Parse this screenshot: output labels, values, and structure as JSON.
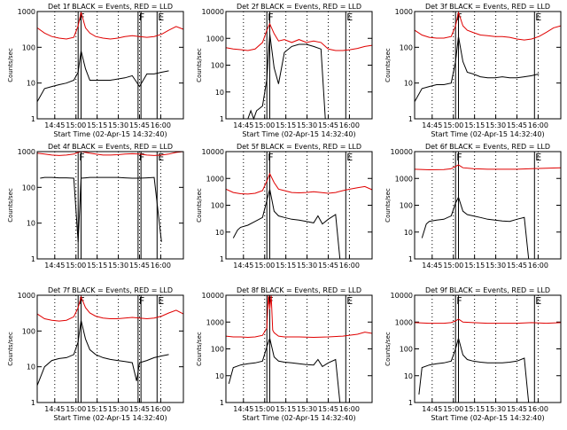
{
  "colors": {
    "events": "#000000",
    "lld": "#e00000",
    "background": "#ffffff"
  },
  "chart_data": [
    {
      "type": "line",
      "title": "Det 1f  BLACK = Events, RED = LLD",
      "xlabel": "Start Time (02-Apr-15 14:32:40)",
      "ylabel": "Counts/sec",
      "xticks": [
        "14:45",
        "15:00",
        "15:15",
        "15:30",
        "15:45",
        "16:00"
      ],
      "yticks": [
        "1",
        "10",
        "100",
        "1000"
      ],
      "ylim": [
        1,
        1000
      ],
      "log_y": true,
      "flags": [
        "F",
        "F",
        "E"
      ],
      "series": [
        {
          "color": "#000000",
          "x": [
            0.0,
            0.05,
            0.1,
            0.15,
            0.2,
            0.25,
            0.28,
            0.3,
            0.33,
            0.36,
            0.4,
            0.45,
            0.5,
            0.55,
            0.6,
            0.65,
            0.7,
            0.75,
            0.8,
            0.85,
            0.9
          ],
          "y": [
            3,
            7,
            8,
            9,
            10,
            12,
            20,
            80,
            25,
            12,
            12,
            12,
            12,
            13,
            14,
            16,
            8,
            18,
            18,
            20,
            22
          ]
        },
        {
          "color": "#e00000",
          "x": [
            0.0,
            0.05,
            0.1,
            0.15,
            0.2,
            0.25,
            0.28,
            0.3,
            0.33,
            0.36,
            0.4,
            0.45,
            0.5,
            0.55,
            0.6,
            0.65,
            0.7,
            0.75,
            0.8,
            0.85,
            0.9,
            0.95,
            1.0
          ],
          "y": [
            350,
            250,
            200,
            180,
            170,
            190,
            400,
            950,
            350,
            250,
            200,
            180,
            170,
            180,
            200,
            210,
            200,
            190,
            200,
            230,
            300,
            380,
            320
          ]
        }
      ]
    },
    {
      "type": "line",
      "title": "Det 2f  BLACK = Events, RED = LLD",
      "xlabel": "Start Time (02-Apr-15 14:32:40)",
      "ylabel": "Counts/sec",
      "xticks": [
        "14:45",
        "15:00",
        "15:15",
        "15:30",
        "15:45",
        "16:00"
      ],
      "yticks": [
        "1",
        "10",
        "100",
        "1000",
        "10000"
      ],
      "ylim": [
        1,
        10000
      ],
      "log_y": true,
      "flags": [
        "F",
        "E"
      ],
      "series": [
        {
          "color": "#000000",
          "x": [
            0.15,
            0.17,
            0.19,
            0.21,
            0.25,
            0.28,
            0.3,
            0.33,
            0.36,
            0.4,
            0.45,
            0.5,
            0.55,
            0.6,
            0.65,
            0.68
          ],
          "y": [
            1,
            2,
            1,
            2,
            3,
            30,
            1500,
            80,
            20,
            300,
            500,
            600,
            600,
            500,
            400,
            1
          ]
        },
        {
          "color": "#e00000",
          "x": [
            0.0,
            0.05,
            0.1,
            0.15,
            0.2,
            0.25,
            0.28,
            0.3,
            0.33,
            0.36,
            0.4,
            0.45,
            0.5,
            0.55,
            0.6,
            0.65,
            0.7,
            0.75,
            0.8,
            0.85,
            0.9,
            0.95,
            1.0
          ],
          "y": [
            450,
            400,
            380,
            350,
            400,
            700,
            2000,
            3500,
            1500,
            800,
            900,
            700,
            900,
            700,
            800,
            700,
            400,
            350,
            350,
            380,
            420,
            500,
            550
          ]
        }
      ]
    },
    {
      "type": "line",
      "title": "Det 3f  BLACK = Events, RED = LLD",
      "xlabel": "Start Time (02-Apr-15 14:32:40)",
      "ylabel": "Counts/sec",
      "xticks": [
        "14:45",
        "15:00",
        "15:15",
        "15:30",
        "15:45",
        "16:00"
      ],
      "yticks": [
        "1",
        "10",
        "100",
        "1000"
      ],
      "ylim": [
        1,
        1000
      ],
      "log_y": true,
      "flags": [
        "F",
        "E"
      ],
      "series": [
        {
          "color": "#000000",
          "x": [
            0.0,
            0.05,
            0.1,
            0.15,
            0.2,
            0.25,
            0.28,
            0.3,
            0.33,
            0.36,
            0.4,
            0.45,
            0.5,
            0.55,
            0.6,
            0.65,
            0.7,
            0.75,
            0.8,
            0.85
          ],
          "y": [
            3,
            7,
            8,
            9,
            9,
            10,
            40,
            200,
            40,
            20,
            18,
            15,
            14,
            14,
            15,
            14,
            14,
            15,
            16,
            18
          ]
        },
        {
          "color": "#e00000",
          "x": [
            0.0,
            0.05,
            0.1,
            0.15,
            0.2,
            0.25,
            0.28,
            0.3,
            0.33,
            0.36,
            0.4,
            0.45,
            0.5,
            0.55,
            0.6,
            0.65,
            0.7,
            0.75,
            0.8,
            0.85,
            0.9,
            0.95,
            1.0
          ],
          "y": [
            300,
            220,
            190,
            180,
            180,
            200,
            400,
            950,
            400,
            300,
            260,
            220,
            210,
            200,
            200,
            190,
            170,
            160,
            170,
            200,
            260,
            350,
            400
          ]
        }
      ]
    },
    {
      "type": "line",
      "title": "Det 4f  BLACK = Events, RED = LLD",
      "xlabel": "",
      "ylabel": "Counts/sec",
      "xticks": [
        "14:45",
        "15:00",
        "15:15",
        "15:30",
        "15:45",
        "16:00"
      ],
      "yticks": [
        "1",
        "10",
        "100",
        "1000"
      ],
      "ylim": [
        1,
        1000
      ],
      "log_y": true,
      "flags": [
        "F",
        "F",
        "E"
      ],
      "series": [
        {
          "color": "#000000",
          "x": [
            0.02,
            0.05,
            0.1,
            0.15,
            0.2,
            0.25,
            0.28,
            0.3,
            0.33,
            0.36,
            0.4,
            0.45,
            0.5,
            0.55,
            0.6,
            0.65,
            0.7,
            0.75,
            0.8,
            0.85
          ],
          "y": [
            180,
            190,
            190,
            185,
            185,
            180,
            3,
            180,
            185,
            190,
            190,
            190,
            190,
            190,
            185,
            180,
            180,
            185,
            190,
            3
          ]
        },
        {
          "color": "#e00000",
          "x": [
            0.0,
            0.05,
            0.1,
            0.15,
            0.2,
            0.25,
            0.28,
            0.3,
            0.33,
            0.36,
            0.4,
            0.45,
            0.5,
            0.55,
            0.6,
            0.65,
            0.7,
            0.75,
            0.8,
            0.85,
            0.9,
            0.95,
            1.0
          ],
          "y": [
            900,
            850,
            800,
            780,
            800,
            850,
            950,
            1000,
            950,
            900,
            850,
            800,
            800,
            820,
            850,
            870,
            850,
            800,
            780,
            800,
            850,
            950,
            1000
          ]
        }
      ]
    },
    {
      "type": "line",
      "title": "Det 5f  BLACK = Events, RED = LLD",
      "xlabel": "",
      "ylabel": "Counts/sec",
      "xticks": [
        "14:45",
        "15:00",
        "15:15",
        "15:30",
        "15:45",
        "16:00"
      ],
      "yticks": [
        "1",
        "10",
        "100",
        "1000",
        "10000"
      ],
      "ylim": [
        1,
        10000
      ],
      "log_y": true,
      "flags": [
        "F",
        "E"
      ],
      "series": [
        {
          "color": "#000000",
          "x": [
            0.05,
            0.08,
            0.1,
            0.15,
            0.2,
            0.25,
            0.28,
            0.3,
            0.33,
            0.36,
            0.4,
            0.45,
            0.5,
            0.55,
            0.6,
            0.63,
            0.66,
            0.7,
            0.75,
            0.78
          ],
          "y": [
            6,
            12,
            15,
            18,
            25,
            35,
            150,
            400,
            60,
            40,
            35,
            30,
            28,
            25,
            22,
            40,
            20,
            30,
            45,
            1
          ]
        },
        {
          "color": "#e00000",
          "x": [
            0.0,
            0.05,
            0.1,
            0.15,
            0.2,
            0.25,
            0.28,
            0.3,
            0.33,
            0.36,
            0.4,
            0.45,
            0.5,
            0.55,
            0.6,
            0.65,
            0.7,
            0.75,
            0.8,
            0.85,
            0.9,
            0.95,
            1.0
          ],
          "y": [
            400,
            300,
            270,
            260,
            280,
            350,
            800,
            1500,
            700,
            400,
            350,
            300,
            290,
            300,
            320,
            300,
            280,
            300,
            350,
            400,
            450,
            500,
            380
          ]
        }
      ]
    },
    {
      "type": "line",
      "title": "Det 6f  BLACK = Events, RED = LLD",
      "xlabel": "",
      "ylabel": "Counts/sec",
      "xticks": [
        "14:45",
        "15:00",
        "15:15",
        "15:30",
        "15:45",
        "16:00"
      ],
      "yticks": [
        "1",
        "10",
        "100",
        "1000",
        "10000"
      ],
      "ylim": [
        1,
        10000
      ],
      "log_y": true,
      "flags": [
        "F",
        "E"
      ],
      "series": [
        {
          "color": "#000000",
          "x": [
            0.05,
            0.08,
            0.1,
            0.15,
            0.2,
            0.25,
            0.28,
            0.3,
            0.33,
            0.36,
            0.4,
            0.45,
            0.5,
            0.55,
            0.6,
            0.65,
            0.7,
            0.75,
            0.78
          ],
          "y": [
            6,
            20,
            25,
            28,
            30,
            40,
            120,
            200,
            60,
            45,
            40,
            35,
            30,
            28,
            26,
            25,
            30,
            35,
            1
          ]
        },
        {
          "color": "#e00000",
          "x": [
            0.0,
            0.1,
            0.2,
            0.25,
            0.28,
            0.3,
            0.33,
            0.4,
            0.5,
            0.6,
            0.7,
            0.8,
            0.9,
            1.0
          ],
          "y": [
            2200,
            2100,
            2150,
            2300,
            2800,
            3200,
            2500,
            2300,
            2200,
            2200,
            2200,
            2300,
            2400,
            2500
          ]
        }
      ]
    },
    {
      "type": "line",
      "title": "Det 7f  BLACK = Events, RED = LLD",
      "xlabel": "Start Time (02-Apr-15 14:32:40)",
      "ylabel": "Counts/sec",
      "xticks": [
        "14:45",
        "15:00",
        "15:15",
        "15:30",
        "15:45",
        "16:00"
      ],
      "yticks": [
        "1",
        "10",
        "100",
        "1000"
      ],
      "ylim": [
        1,
        1000
      ],
      "log_y": true,
      "flags": [
        "F",
        "F",
        "E"
      ],
      "series": [
        {
          "color": "#000000",
          "x": [
            0.0,
            0.05,
            0.1,
            0.15,
            0.2,
            0.25,
            0.28,
            0.3,
            0.33,
            0.36,
            0.4,
            0.45,
            0.5,
            0.55,
            0.6,
            0.65,
            0.68,
            0.7,
            0.75,
            0.8,
            0.85,
            0.9
          ],
          "y": [
            3,
            10,
            15,
            17,
            18,
            22,
            50,
            200,
            60,
            30,
            22,
            18,
            16,
            15,
            14,
            13,
            4,
            13,
            15,
            18,
            20,
            22
          ]
        },
        {
          "color": "#e00000",
          "x": [
            0.0,
            0.05,
            0.1,
            0.15,
            0.2,
            0.25,
            0.28,
            0.3,
            0.33,
            0.36,
            0.4,
            0.45,
            0.5,
            0.55,
            0.6,
            0.65,
            0.7,
            0.75,
            0.8,
            0.85,
            0.9,
            0.95,
            1.0
          ],
          "y": [
            300,
            220,
            200,
            190,
            200,
            250,
            450,
            900,
            450,
            320,
            260,
            230,
            220,
            220,
            230,
            240,
            230,
            220,
            230,
            260,
            320,
            380,
            300
          ]
        }
      ]
    },
    {
      "type": "line",
      "title": "Det 8f  BLACK = Events, RED = LLD",
      "xlabel": "Start Time (02-Apr-15 14:32:40)",
      "ylabel": "Counts/sec",
      "xticks": [
        "14:45",
        "15:00",
        "15:15",
        "15:30",
        "15:45",
        "16:00"
      ],
      "yticks": [
        "1",
        "10",
        "100",
        "1000",
        "10000"
      ],
      "ylim": [
        1,
        10000
      ],
      "log_y": true,
      "flags": [
        "F",
        "E"
      ],
      "series": [
        {
          "color": "#000000",
          "x": [
            0.02,
            0.05,
            0.1,
            0.15,
            0.2,
            0.25,
            0.28,
            0.3,
            0.33,
            0.36,
            0.4,
            0.45,
            0.5,
            0.55,
            0.6,
            0.63,
            0.66,
            0.7,
            0.75,
            0.78
          ],
          "y": [
            5,
            20,
            25,
            28,
            30,
            35,
            120,
            250,
            50,
            35,
            32,
            30,
            28,
            26,
            25,
            40,
            22,
            30,
            40,
            1
          ]
        },
        {
          "color": "#e00000",
          "x": [
            0.0,
            0.05,
            0.1,
            0.15,
            0.2,
            0.25,
            0.28,
            0.29,
            0.3,
            0.31,
            0.32,
            0.33,
            0.36,
            0.4,
            0.5,
            0.6,
            0.7,
            0.8,
            0.9,
            0.95,
            1.0
          ],
          "y": [
            300,
            280,
            280,
            270,
            280,
            320,
            600,
            10000,
            3000,
            10000,
            500,
            400,
            300,
            280,
            280,
            270,
            280,
            300,
            350,
            420,
            380
          ]
        }
      ]
    },
    {
      "type": "line",
      "title": "Det 9f  BLACK = Events, RED = LLD",
      "xlabel": "Start Time (02-Apr-15 14:32:40)",
      "ylabel": "Counts/sec",
      "xticks": [
        "14:45",
        "15:00",
        "15:15",
        "15:30",
        "15:45",
        "16:00"
      ],
      "yticks": [
        "1",
        "10",
        "100",
        "1000",
        "10000"
      ],
      "ylim": [
        1,
        10000
      ],
      "log_y": true,
      "flags": [
        "F",
        "E"
      ],
      "series": [
        {
          "color": "#000000",
          "x": [
            0.03,
            0.05,
            0.1,
            0.15,
            0.2,
            0.25,
            0.28,
            0.3,
            0.33,
            0.36,
            0.4,
            0.45,
            0.5,
            0.55,
            0.6,
            0.65,
            0.7,
            0.75,
            0.78
          ],
          "y": [
            2,
            20,
            25,
            28,
            30,
            35,
            100,
            250,
            60,
            40,
            35,
            32,
            30,
            30,
            30,
            32,
            35,
            45,
            1
          ]
        },
        {
          "color": "#e00000",
          "x": [
            0.0,
            0.1,
            0.2,
            0.25,
            0.28,
            0.3,
            0.33,
            0.4,
            0.5,
            0.6,
            0.7,
            0.8,
            0.9,
            1.0
          ],
          "y": [
            950,
            900,
            900,
            950,
            1100,
            1300,
            1000,
            950,
            900,
            900,
            900,
            950,
            900,
            950
          ]
        }
      ]
    }
  ]
}
